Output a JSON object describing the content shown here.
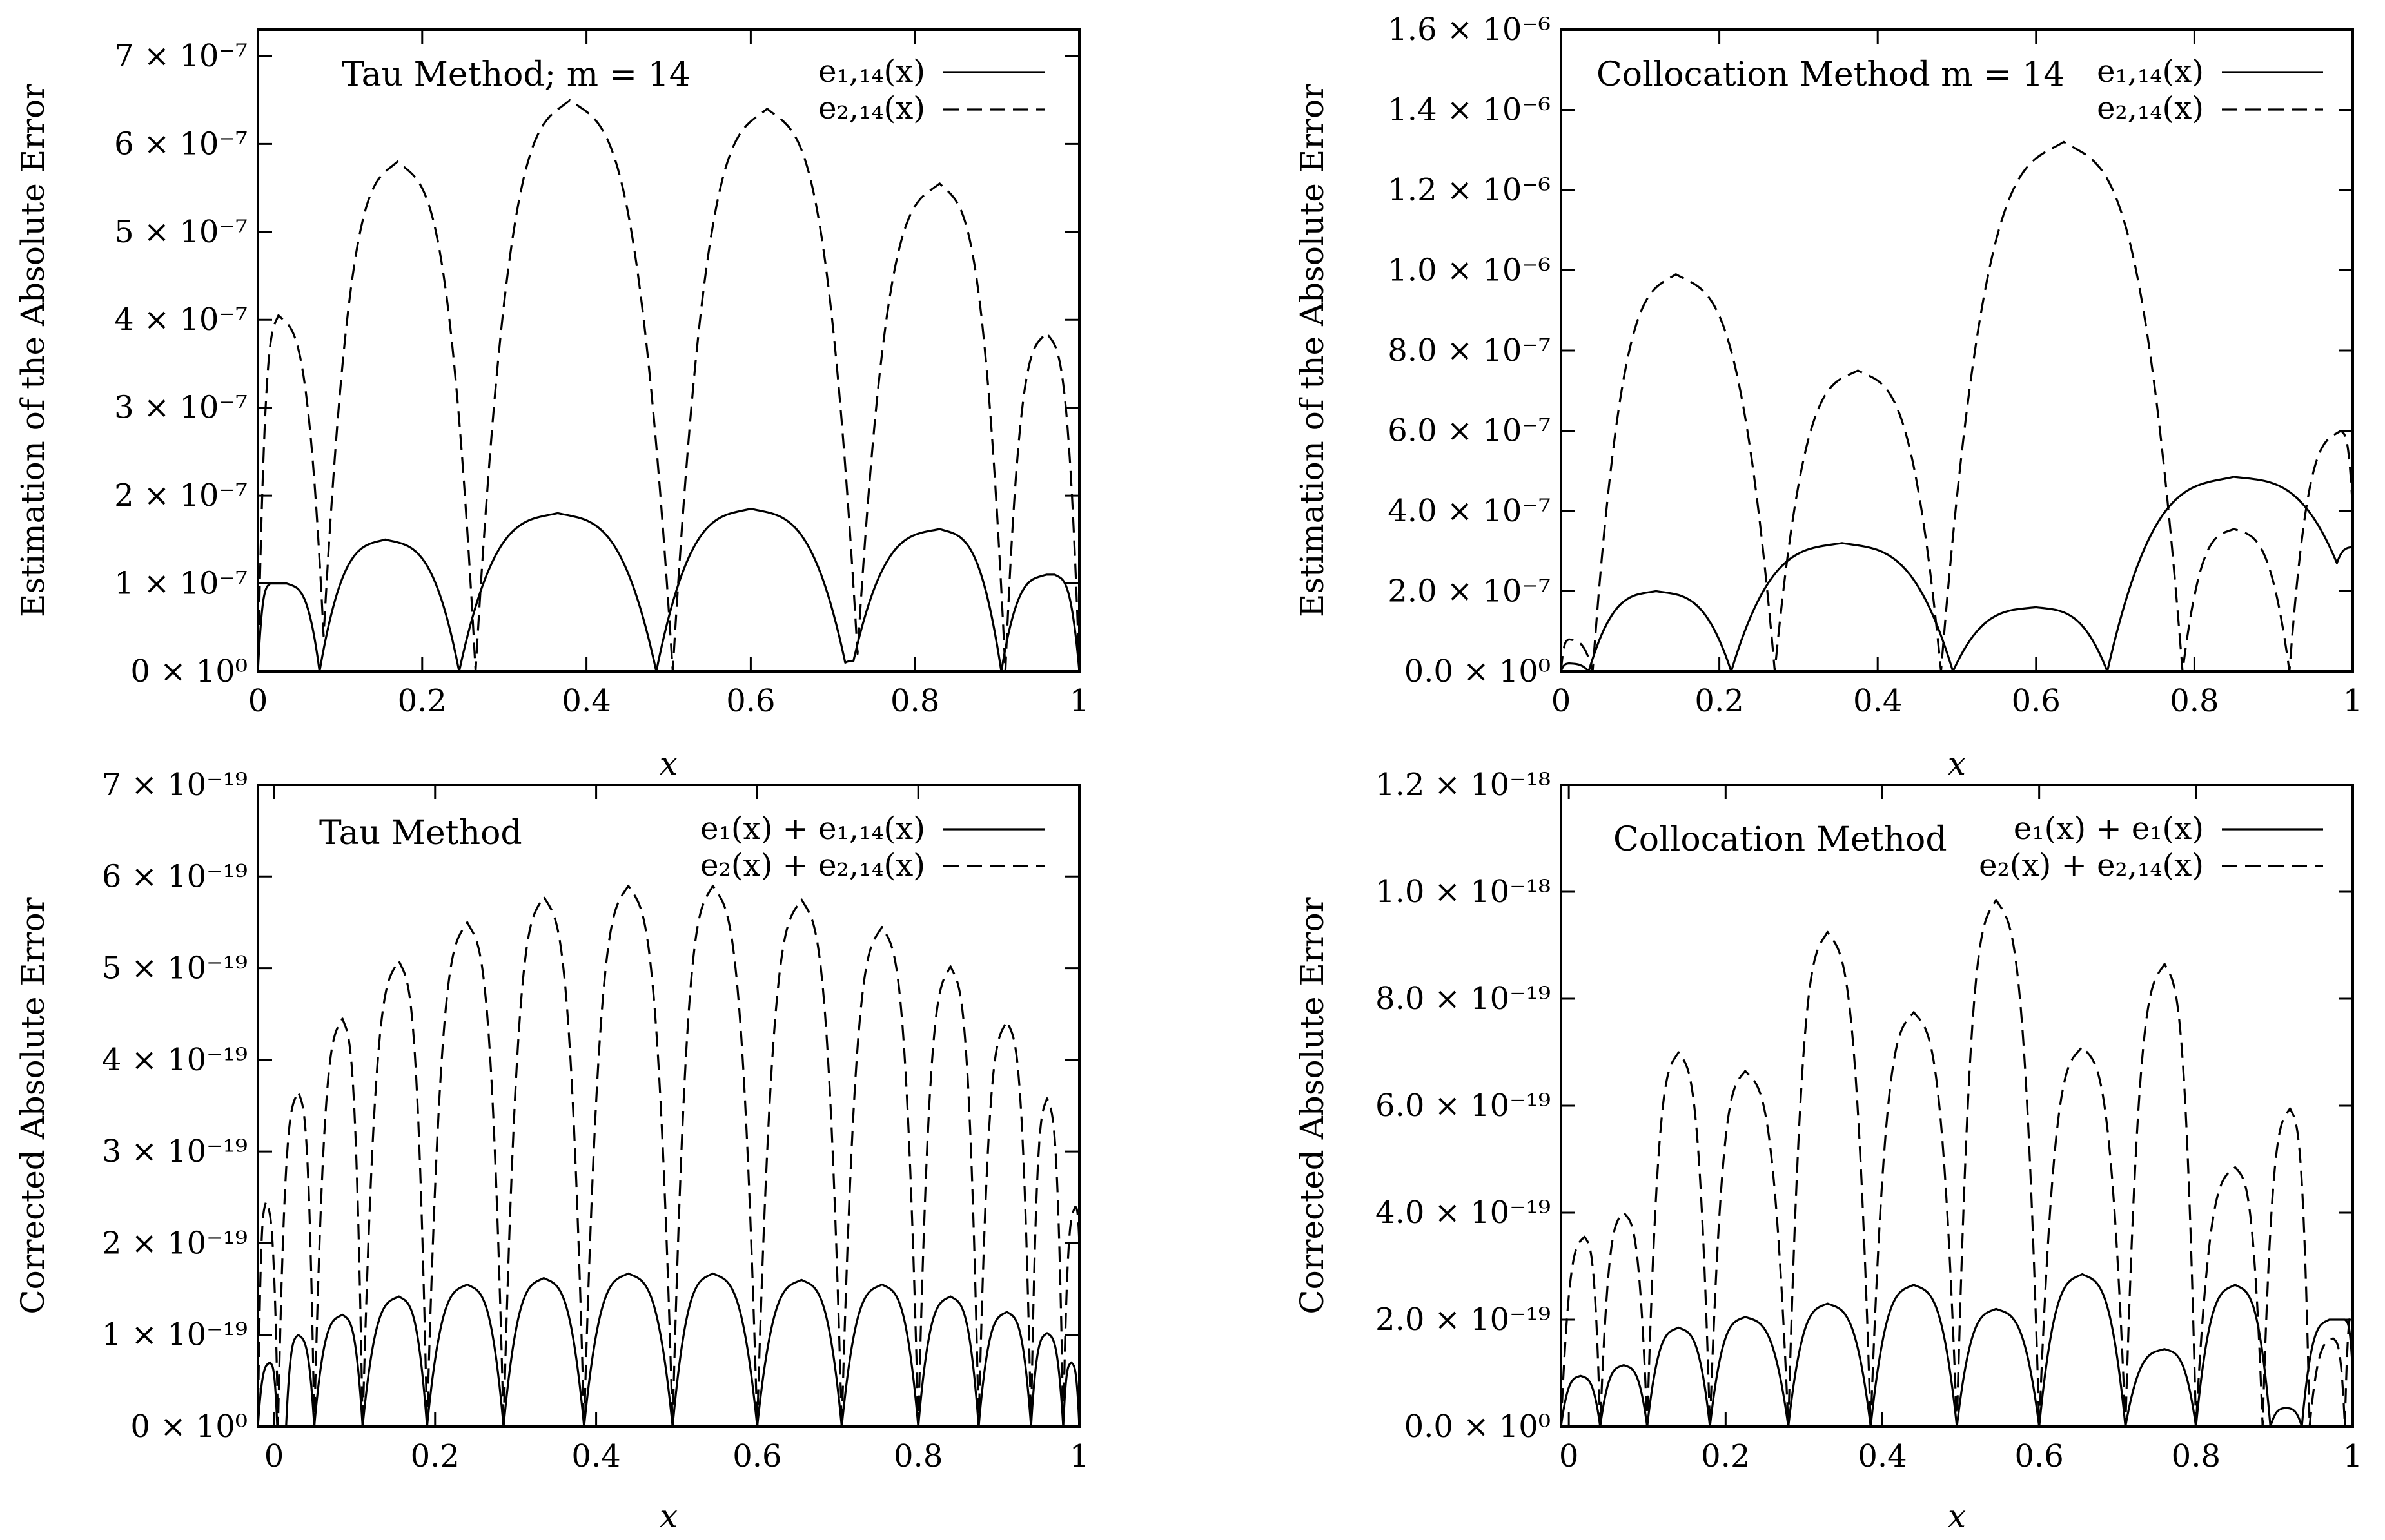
{
  "chart_data": [
    {
      "id": "tau-estimate",
      "type": "line",
      "title": "Tau Method; m = 14",
      "xlabel": "x",
      "ylabel": "Estimation of the Absolute Error",
      "xlim": [
        0,
        1
      ],
      "ylim": [
        0,
        7.3e-07
      ],
      "xticks": [
        0,
        0.2,
        0.4,
        0.6,
        0.8,
        1
      ],
      "xtick_labels": [
        "0",
        "0.2",
        "0.4",
        "0.6",
        "0.8",
        "1"
      ],
      "yticks": [
        0,
        1e-07,
        2e-07,
        3e-07,
        4e-07,
        5e-07,
        6e-07,
        7e-07
      ],
      "ytick_labels": [
        "0 × 10⁰",
        "1 × 10⁻⁷",
        "2 × 10⁻⁷",
        "3 × 10⁻⁷",
        "4 × 10⁻⁷",
        "5 × 10⁻⁷",
        "6 × 10⁻⁷",
        "7 × 10⁻⁷"
      ],
      "legend_position": "top-right",
      "series": [
        {
          "name": "e₁,₁₄(x)",
          "style": "solid",
          "x": [
            0,
            0.015,
            0.035,
            0.075,
            0.155,
            0.245,
            0.365,
            0.485,
            0.6,
            0.715,
            0.725,
            0.83,
            0.905,
            0.96,
            0.97,
            1
          ],
          "y": [
            0,
            1e-07,
            1e-07,
            0,
            1.5e-07,
            0,
            1.8e-07,
            0,
            1.85e-07,
            1e-08,
            1.2e-08,
            1.62e-07,
            0,
            1.1e-07,
            1.1e-07,
            0
          ]
        },
        {
          "name": "e₂,₁₄(x)",
          "style": "dashed",
          "x": [
            0,
            0.025,
            0.08,
            0.17,
            0.265,
            0.38,
            0.505,
            0.62,
            0.73,
            0.83,
            0.91,
            0.96,
            1
          ],
          "y": [
            0,
            4.05e-07,
            4e-08,
            5.8e-07,
            0,
            6.5e-07,
            0,
            6.4e-07,
            2e-08,
            5.55e-07,
            0,
            3.85e-07,
            0
          ]
        }
      ]
    },
    {
      "id": "collocation-estimate",
      "type": "line",
      "title": "Collocation Method m = 14",
      "xlabel": "x",
      "ylabel": "Estimation of the Absolute Error",
      "xlim": [
        0,
        1
      ],
      "ylim": [
        0,
        1.6e-06
      ],
      "xticks": [
        0,
        0.2,
        0.4,
        0.6,
        0.8,
        1
      ],
      "xtick_labels": [
        "0",
        "0.2",
        "0.4",
        "0.6",
        "0.8",
        "1"
      ],
      "yticks": [
        0,
        2e-07,
        4e-07,
        6e-07,
        8e-07,
        1e-06,
        1.2e-06,
        1.4e-06,
        1.6e-06
      ],
      "ytick_labels": [
        "0.0 × 10⁰",
        "2.0 × 10⁻⁷",
        "4.0 × 10⁻⁷",
        "6.0 × 10⁻⁷",
        "8.0 × 10⁻⁷",
        "1.0 × 10⁻⁶",
        "1.2 × 10⁻⁶",
        "1.4 × 10⁻⁶",
        "1.6 × 10⁻⁶"
      ],
      "legend_position": "top-right",
      "series": [
        {
          "name": "e₁,₁₄(x)",
          "style": "solid",
          "x": [
            0,
            0.01,
            0.035,
            0.12,
            0.215,
            0.355,
            0.495,
            0.6,
            0.69,
            0.85,
            0.98,
            1
          ],
          "y": [
            0,
            2e-08,
            0,
            2e-07,
            0,
            3.2e-07,
            0,
            1.6e-07,
            0,
            4.85e-07,
            2.7e-07,
            3.1e-07
          ]
        },
        {
          "name": "e₂,₁₄(x)",
          "style": "dashed",
          "x": [
            0,
            0.01,
            0.04,
            0.145,
            0.27,
            0.375,
            0.48,
            0.635,
            0.785,
            0.85,
            0.92,
            0.985,
            1
          ],
          "y": [
            0,
            8e-08,
            0,
            9.9e-07,
            0,
            7.5e-07,
            0,
            1.32e-06,
            0,
            3.55e-07,
            0,
            6e-07,
            4e-07
          ]
        }
      ]
    },
    {
      "id": "tau-corrected",
      "type": "line",
      "title": "Tau Method",
      "xlabel": "x",
      "ylabel": "Corrected Absolute Error",
      "xlim": [
        -0.02,
        1
      ],
      "ylim": [
        0,
        7e-19
      ],
      "xticks": [
        0,
        0.2,
        0.4,
        0.6,
        0.8,
        1
      ],
      "xtick_labels": [
        "0",
        "0.2",
        "0.4",
        "0.6",
        "0.8",
        "1"
      ],
      "yticks": [
        0,
        1e-19,
        2e-19,
        3e-19,
        4e-19,
        5e-19,
        6e-19,
        7e-19
      ],
      "ytick_labels": [
        "0 × 10⁰",
        "1 × 10⁻¹⁹",
        "2 × 10⁻¹⁹",
        "3 × 10⁻¹⁹",
        "4 × 10⁻¹⁹",
        "5 × 10⁻¹⁹",
        "6 × 10⁻¹⁹",
        "7 × 10⁻¹⁹"
      ],
      "legend_position": "top-right",
      "series": [
        {
          "name": "e₁(x) + e₁,₁₄(x)",
          "style": "solid",
          "x": [
            -0.02,
            -0.005,
            0.004,
            0.015,
            0.03,
            0.05,
            0.085,
            0.11,
            0.155,
            0.19,
            0.24,
            0.285,
            0.335,
            0.385,
            0.44,
            0.495,
            0.545,
            0.6,
            0.655,
            0.705,
            0.755,
            0.8,
            0.84,
            0.875,
            0.91,
            0.94,
            0.96,
            0.98,
            0.99,
            1
          ],
          "y": [
            0,
            7e-20,
            0,
            0,
            1e-19,
            0,
            1.22e-19,
            0,
            1.42e-19,
            0,
            1.55e-19,
            0,
            1.62e-19,
            0,
            1.67e-19,
            0,
            1.67e-19,
            0,
            1.6e-19,
            0,
            1.55e-19,
            0,
            1.42e-19,
            0,
            1.25e-19,
            0,
            1.02e-19,
            0,
            7e-20,
            0
          ]
        },
        {
          "name": "e₂(x) + e₂,₁₄(x)",
          "style": "dashed",
          "x": [
            -0.02,
            -0.01,
            0.005,
            0.03,
            0.05,
            0.085,
            0.11,
            0.155,
            0.19,
            0.24,
            0.285,
            0.335,
            0.385,
            0.44,
            0.495,
            0.545,
            0.6,
            0.655,
            0.705,
            0.755,
            0.8,
            0.84,
            0.875,
            0.91,
            0.94,
            0.96,
            0.98,
            0.995,
            1
          ],
          "y": [
            0,
            2.45e-19,
            0,
            3.65e-19,
            0,
            4.45e-19,
            0,
            5.08e-19,
            0,
            5.5e-19,
            0,
            5.78e-19,
            0,
            5.9e-19,
            0,
            5.9e-19,
            0,
            5.75e-19,
            0,
            5.45e-19,
            0,
            5.02e-19,
            0,
            4.42e-19,
            0,
            3.58e-19,
            0,
            2.4e-19,
            2e-19
          ]
        }
      ]
    },
    {
      "id": "collocation-corrected",
      "type": "line",
      "title": "Collocation Method",
      "xlabel": "x",
      "ylabel": "Corrected Absolute Error",
      "xlim": [
        -0.01,
        1
      ],
      "ylim": [
        0,
        1.2e-18
      ],
      "xticks": [
        0,
        0.2,
        0.4,
        0.6,
        0.8,
        1
      ],
      "xtick_labels": [
        "0",
        "0.2",
        "0.4",
        "0.6",
        "0.8",
        "1"
      ],
      "yticks": [
        0,
        2e-19,
        4e-19,
        6e-19,
        8e-19,
        1e-18,
        1.2e-18
      ],
      "ytick_labels": [
        "0.0 × 10⁰",
        "2.0 × 10⁻¹⁹",
        "4.0 × 10⁻¹⁹",
        "6.0 × 10⁻¹⁹",
        "8.0 × 10⁻¹⁹",
        "1.0 × 10⁻¹⁸",
        "1.2 × 10⁻¹⁸"
      ],
      "legend_position": "top-right",
      "series": [
        {
          "name": "e₁(x) + e₁(x)",
          "style": "solid",
          "x": [
            -0.01,
            0.015,
            0.04,
            0.07,
            0.1,
            0.14,
            0.18,
            0.225,
            0.28,
            0.33,
            0.385,
            0.44,
            0.495,
            0.545,
            0.6,
            0.655,
            0.71,
            0.76,
            0.8,
            0.85,
            0.895,
            0.915,
            0.935,
            0.97,
            0.99,
            1
          ],
          "y": [
            0,
            9.5e-20,
            0,
            1.15e-19,
            0,
            1.85e-19,
            0,
            2.05e-19,
            0,
            2.3e-19,
            0,
            2.65e-19,
            0,
            2.2e-19,
            0,
            2.85e-19,
            0,
            1.45e-19,
            0,
            2.65e-19,
            0,
            3.5e-20,
            0,
            2e-19,
            2e-19,
            1e-19
          ]
        },
        {
          "name": "e₂(x) + e₂,₁₄(x)",
          "style": "dashed",
          "x": [
            -0.01,
            0.02,
            0.04,
            0.07,
            0.1,
            0.14,
            0.18,
            0.225,
            0.28,
            0.33,
            0.385,
            0.44,
            0.495,
            0.545,
            0.6,
            0.655,
            0.71,
            0.76,
            0.8,
            0.85,
            0.885,
            0.92,
            0.945,
            0.975,
            0.99,
            1
          ],
          "y": [
            0,
            3.55e-19,
            0,
            4e-19,
            0,
            7e-19,
            0,
            6.65e-19,
            0,
            9.25e-19,
            0,
            7.75e-19,
            0,
            9.85e-19,
            0,
            7.1e-19,
            0,
            8.65e-19,
            0,
            4.85e-19,
            0,
            5.95e-19,
            0,
            1.65e-19,
            0,
            2.2e-19
          ]
        }
      ]
    }
  ]
}
